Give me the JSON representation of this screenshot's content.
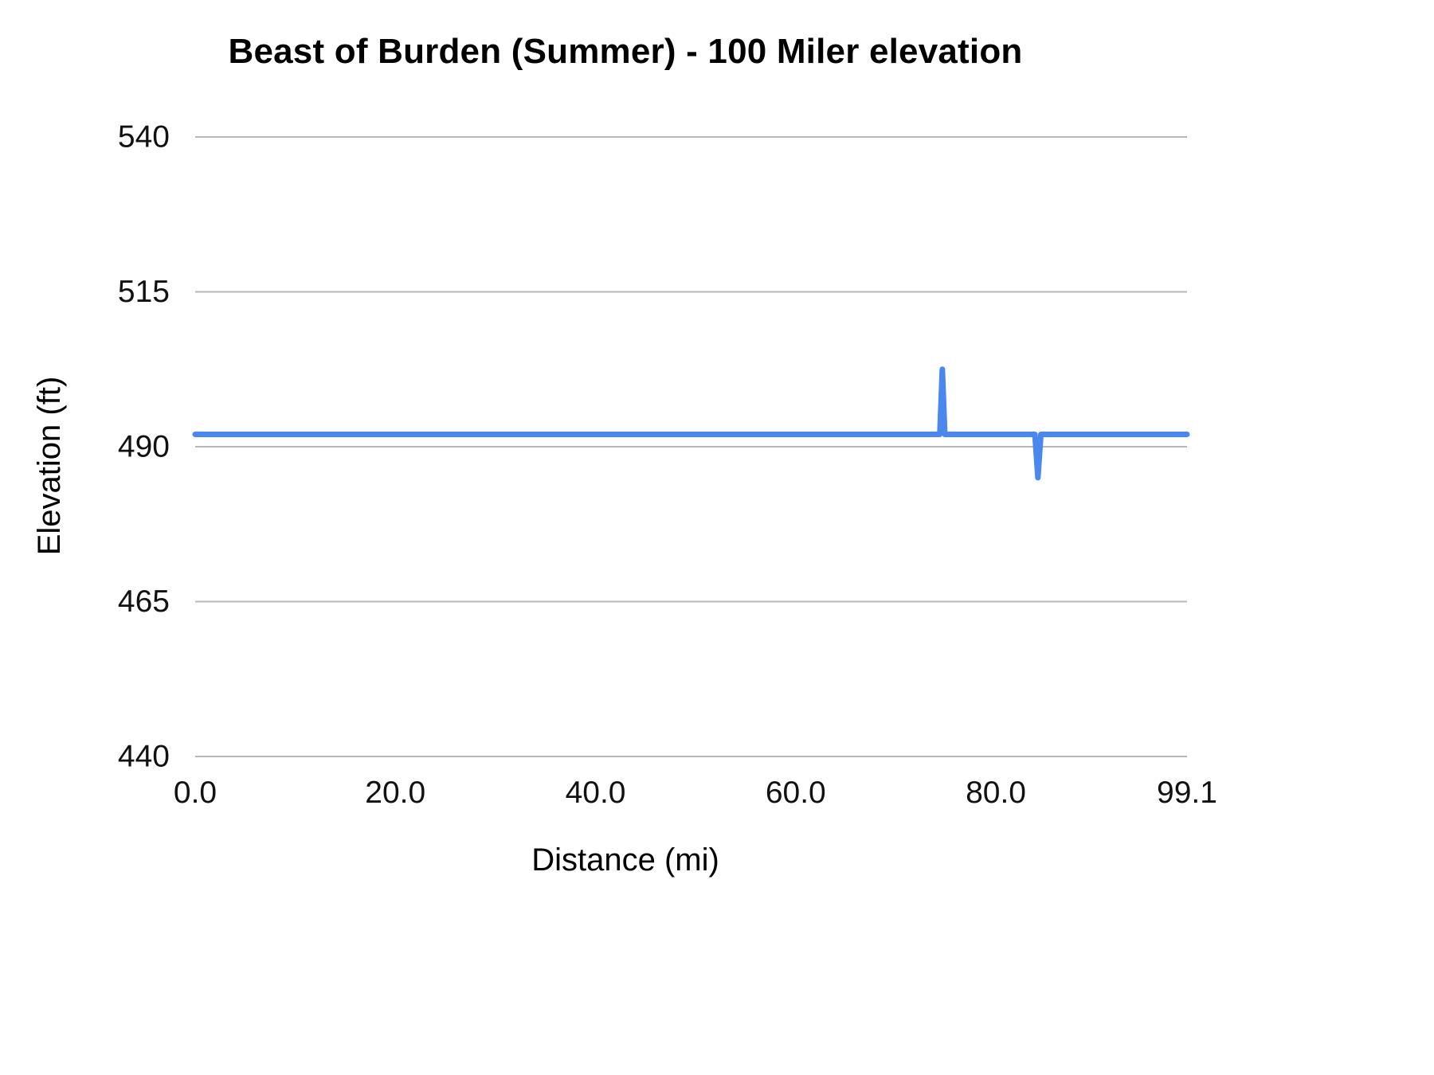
{
  "chart_data": {
    "type": "line",
    "title": "Beast of Burden (Summer) - 100 Miler elevation",
    "xlabel": "Distance (mi)",
    "ylabel": "Elevation (ft)",
    "xlim": [
      0,
      99.1
    ],
    "ylim": [
      440,
      540
    ],
    "x_ticks": [
      0.0,
      20.0,
      40.0,
      60.0,
      80.0,
      99.1
    ],
    "x_tick_labels": [
      "0.0",
      "20.0",
      "40.0",
      "60.0",
      "80.0",
      "99.1"
    ],
    "y_ticks": [
      440,
      465,
      490,
      515,
      540
    ],
    "y_tick_labels": [
      "440",
      "465",
      "490",
      "515",
      "540"
    ],
    "grid": "horizontal",
    "legend": "none",
    "line_color": "#4a87ee",
    "grid_color": "#b7b7b7",
    "series": [
      {
        "name": "Elevation",
        "points": [
          {
            "x": 0.0,
            "y": 492
          },
          {
            "x": 74.4,
            "y": 492
          },
          {
            "x": 74.65,
            "y": 502.5
          },
          {
            "x": 74.9,
            "y": 492
          },
          {
            "x": 83.9,
            "y": 492
          },
          {
            "x": 84.2,
            "y": 485
          },
          {
            "x": 84.5,
            "y": 492
          },
          {
            "x": 99.1,
            "y": 492
          }
        ]
      }
    ]
  }
}
